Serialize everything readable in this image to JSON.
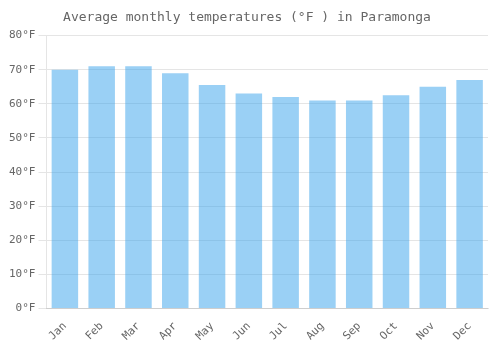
{
  "chart_data": {
    "type": "bar",
    "title": "Average monthly temperatures (°F ) in Paramonga",
    "categories": [
      "Jan",
      "Feb",
      "Mar",
      "Apr",
      "May",
      "Jun",
      "Jul",
      "Aug",
      "Sep",
      "Oct",
      "Nov",
      "Dec"
    ],
    "values": [
      70,
      71,
      71,
      69,
      65.5,
      63,
      62,
      61,
      61,
      62.5,
      65,
      67
    ],
    "ylim": [
      0,
      80
    ],
    "yticks": [
      {
        "value": 0,
        "label": "0°F"
      },
      {
        "value": 10,
        "label": "10°F"
      },
      {
        "value": 20,
        "label": "20°F"
      },
      {
        "value": 30,
        "label": "30°F"
      },
      {
        "value": 40,
        "label": "40°F"
      },
      {
        "value": 50,
        "label": "50°F"
      },
      {
        "value": 60,
        "label": "60°F"
      },
      {
        "value": 70,
        "label": "70°F"
      },
      {
        "value": 80,
        "label": "80°F"
      }
    ],
    "grid": true
  }
}
